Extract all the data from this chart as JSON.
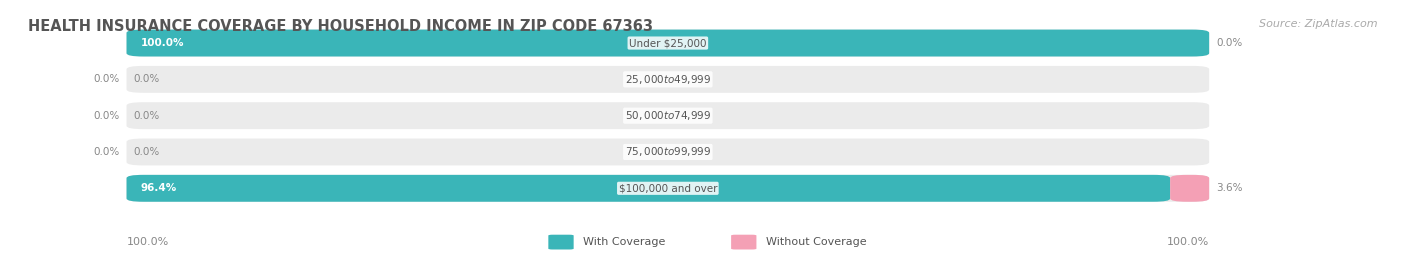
{
  "title": "HEALTH INSURANCE COVERAGE BY HOUSEHOLD INCOME IN ZIP CODE 67363",
  "source": "Source: ZipAtlas.com",
  "categories": [
    "Under $25,000",
    "$25,000 to $49,999",
    "$50,000 to $74,999",
    "$75,000 to $99,999",
    "$100,000 and over"
  ],
  "with_coverage": [
    100.0,
    0.0,
    0.0,
    0.0,
    96.4
  ],
  "without_coverage": [
    0.0,
    0.0,
    0.0,
    0.0,
    3.6
  ],
  "teal_color": "#3ab5b8",
  "pink_color": "#f4a0b5",
  "bg_bar_color": "#ebebeb",
  "bar_bg": "#f5f5f5",
  "title_color": "#555555",
  "label_color": "#888888",
  "text_white": "#ffffff",
  "text_dark": "#888888",
  "legend_teal": "#3ab5b8",
  "legend_pink": "#f4a0b5",
  "fig_bg": "#ffffff",
  "left_axis_label": "100.0%",
  "right_axis_label": "100.0%",
  "bottom_left_label": "100.0%",
  "bottom_right_label": "100.0%"
}
